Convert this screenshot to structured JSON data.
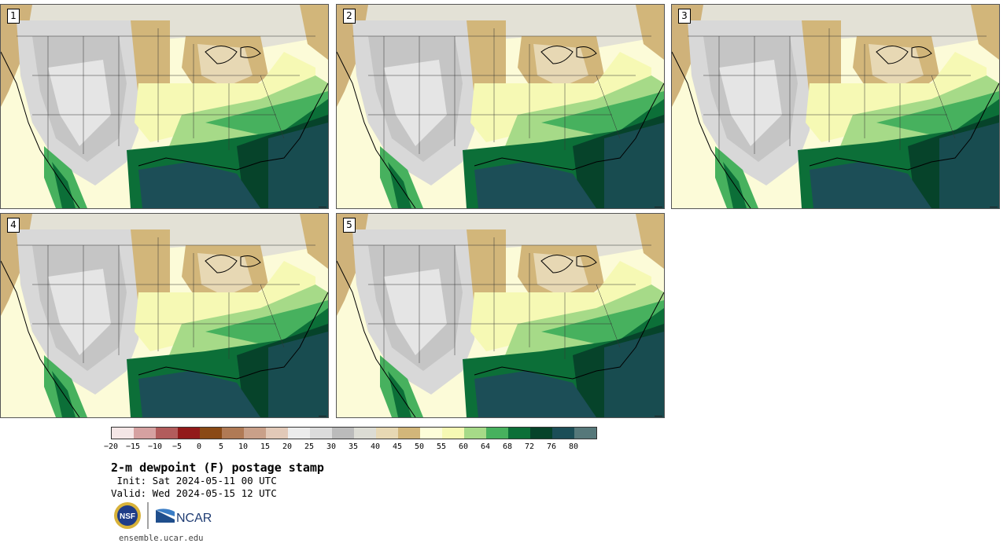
{
  "panels": [
    {
      "id": "1",
      "label": "1"
    },
    {
      "id": "2",
      "label": "2"
    },
    {
      "id": "3",
      "label": "3"
    },
    {
      "id": "4",
      "label": "4"
    },
    {
      "id": "5",
      "label": "5"
    }
  ],
  "colorbar": {
    "colors": [
      "#f4e6e6",
      "#d5a1a1",
      "#b25c5c",
      "#921a1a",
      "#8a4a16",
      "#b07a55",
      "#c9a089",
      "#e2c9b8",
      "#ececec",
      "#dcdcdc",
      "#bbbbbb",
      "#dcdcd4",
      "#e7d8b4",
      "#d2b67a",
      "#fdfdd9",
      "#f6f9b4",
      "#a6da88",
      "#47b15e",
      "#0c6f38",
      "#06432a",
      "#1c4e57",
      "#56787a"
    ],
    "tick_labels": [
      "−20",
      "−15",
      "−10",
      "−5",
      "0",
      "5",
      "10",
      "15",
      "20",
      "25",
      "30",
      "35",
      "40",
      "45",
      "50",
      "55",
      "60",
      "64",
      "68",
      "72",
      "76",
      "80"
    ]
  },
  "title": "2-m dewpoint (F) postage stamp",
  "init_line": " Init: Sat 2024-05-11 00 UTC",
  "valid_line": "Valid: Wed 2024-05-15 12 UTC",
  "logos": {
    "nsf_text": "NSF",
    "ncar_text": "NCAR"
  },
  "url": "ensemble.ucar.edu"
}
